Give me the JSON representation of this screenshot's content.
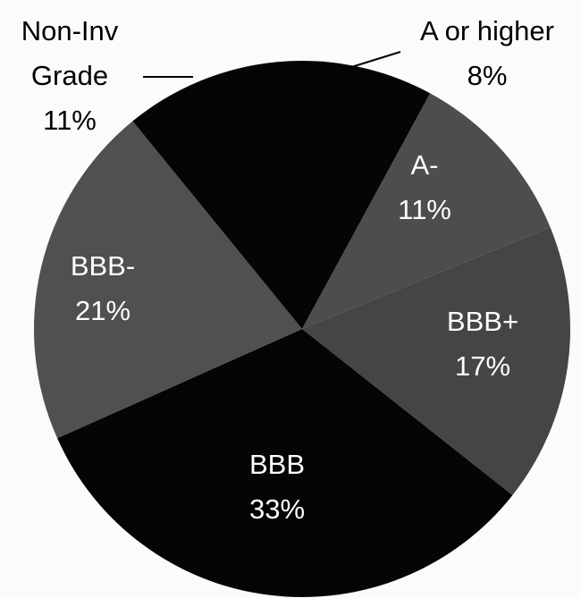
{
  "chart_data": {
    "type": "pie",
    "categories": [
      "A or higher",
      "A-",
      "BBB+",
      "BBB",
      "BBB-",
      "Non-Inv Grade"
    ],
    "values": [
      8,
      11,
      17,
      33,
      21,
      11
    ],
    "value_labels": [
      "8%",
      "11%",
      "17%",
      "33%",
      "21%",
      "11%"
    ],
    "colors": [
      "#050505",
      "#4d4d4d",
      "#454545",
      "#050505",
      "#505050",
      "#050505"
    ]
  }
}
